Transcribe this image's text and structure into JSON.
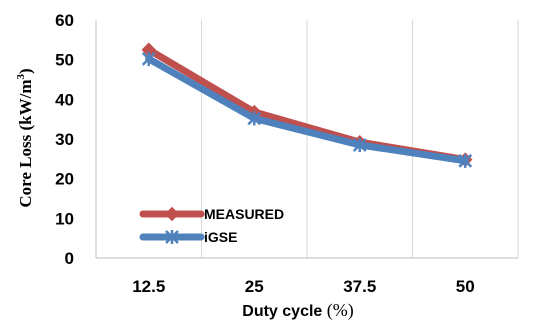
{
  "chart_data": {
    "type": "line",
    "categories": [
      "12.5",
      "25",
      "37.5",
      "50"
    ],
    "series": [
      {
        "name": "MEASURED",
        "values": [
          52.5,
          36.8,
          29.2,
          24.8
        ],
        "color": "#c0504d",
        "marker": "diamond"
      },
      {
        "name": "iGSE",
        "values": [
          50.2,
          35.2,
          28.5,
          24.5
        ],
        "color": "#4f81bd",
        "marker": "star"
      }
    ],
    "ylim": [
      0,
      60
    ],
    "yticks": [
      "0",
      "10",
      "20",
      "30",
      "40",
      "50",
      "60"
    ],
    "ylabel": "Core Loss (kW/m",
    "ylabel_sup": "3",
    "ylabel_close": ")",
    "xlabel": "Duty cycle ",
    "xlabel_unit": "(%)",
    "grid": "vertical",
    "legend": "bottom-left"
  }
}
